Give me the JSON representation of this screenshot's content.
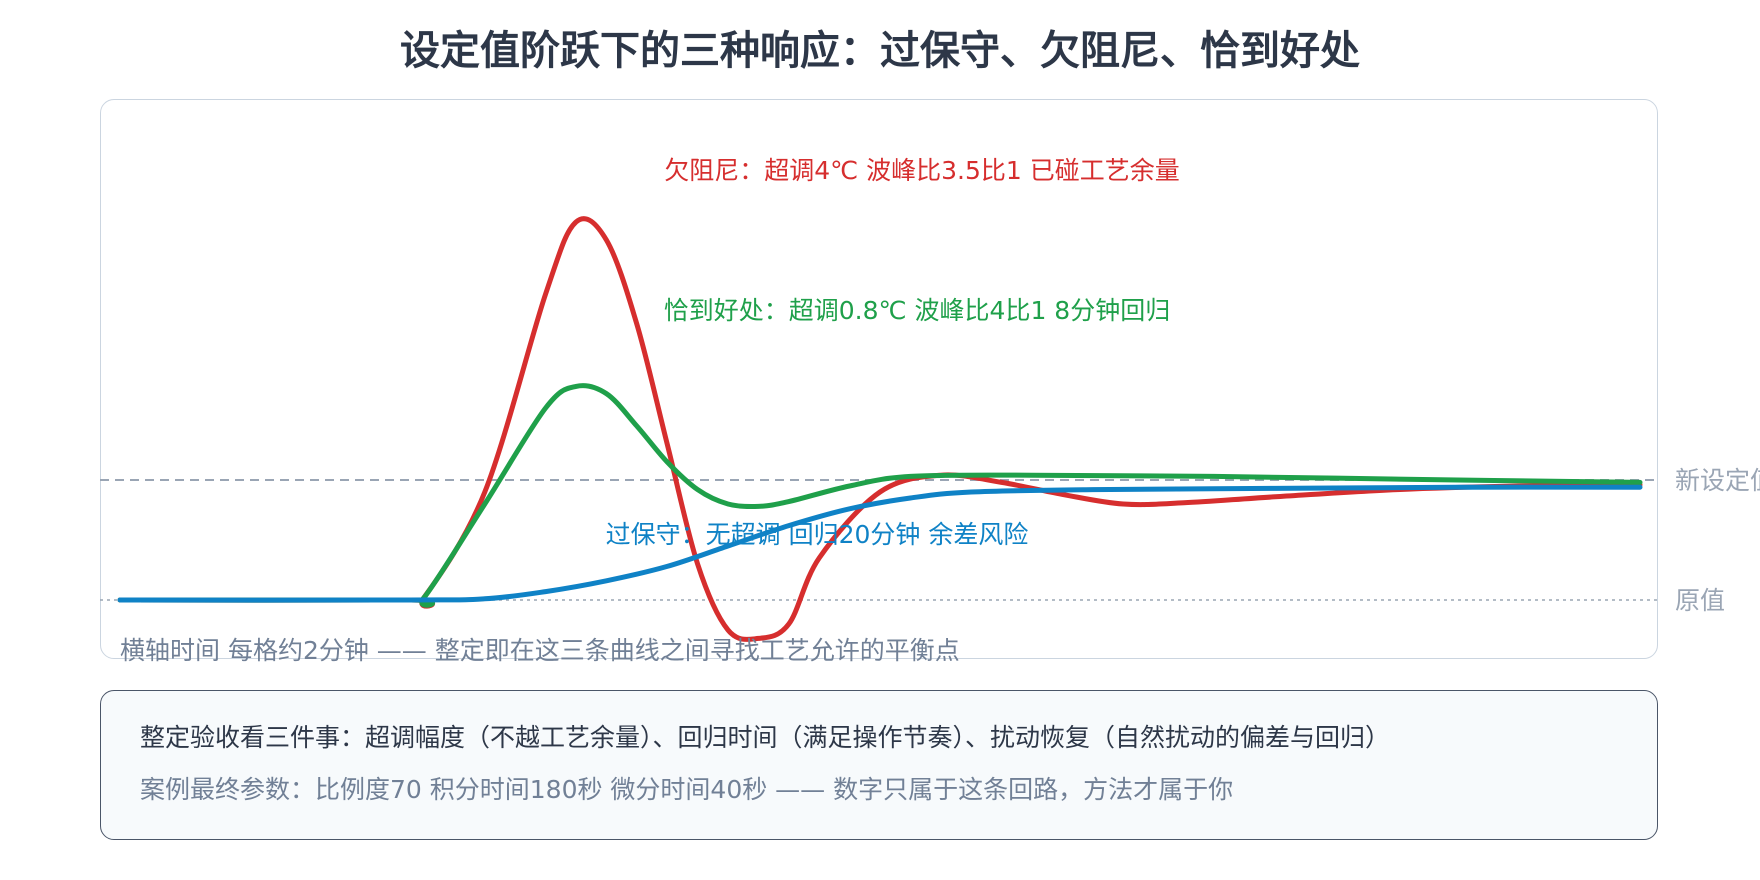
{
  "title": "设定值阶跃下的三种响应：过保守、欠阻尼、恰到好处",
  "chart_data": {
    "type": "line",
    "reference_lines": [
      {
        "label": "新设定值",
        "value": 1.0,
        "color": "#9aa5b4",
        "style": "dashed"
      },
      {
        "label": "原值",
        "value": 0.0,
        "color": "#9aa5b4",
        "style": "dotted"
      }
    ],
    "series": [
      {
        "key": "underdamped",
        "color": "#d62e2e",
        "label": "欠阻尼：超调4℃ 波峰比3.5比1 已碰工艺余量",
        "points": [
          [
            0,
            0
          ],
          [
            9.5,
            0
          ],
          [
            10,
            0.02
          ],
          [
            12,
            0.9
          ],
          [
            14,
            2.55
          ],
          [
            15,
            3.15
          ],
          [
            16,
            3.0
          ],
          [
            17,
            2.3
          ],
          [
            18,
            1.3
          ],
          [
            19,
            0.3
          ],
          [
            20,
            -0.25
          ],
          [
            21,
            -0.32
          ],
          [
            22,
            -0.2
          ],
          [
            23,
            0.35
          ],
          [
            25,
            0.9
          ],
          [
            27,
            1.04
          ],
          [
            29,
            0.98
          ],
          [
            31,
            0.88
          ],
          [
            33,
            0.8
          ],
          [
            35,
            0.81
          ],
          [
            38,
            0.86
          ],
          [
            42,
            0.92
          ],
          [
            46,
            0.95
          ],
          [
            50,
            0.96
          ]
        ]
      },
      {
        "key": "optimal",
        "color": "#1fa04a",
        "label": "恰到好处：超调0.8℃ 波峰比4比1 8分钟回归",
        "points": [
          [
            0,
            0
          ],
          [
            9.5,
            0
          ],
          [
            10,
            0.02
          ],
          [
            12,
            0.8
          ],
          [
            14,
            1.6
          ],
          [
            15,
            1.78
          ],
          [
            16,
            1.72
          ],
          [
            17,
            1.45
          ],
          [
            18,
            1.15
          ],
          [
            19,
            0.92
          ],
          [
            20,
            0.8
          ],
          [
            21,
            0.78
          ],
          [
            22,
            0.82
          ],
          [
            24,
            0.95
          ],
          [
            26,
            1.03
          ],
          [
            30,
            1.04
          ],
          [
            36,
            1.03
          ],
          [
            44,
            1.0
          ],
          [
            50,
            0.98
          ]
        ]
      },
      {
        "key": "conservative",
        "color": "#0f82c6",
        "label": "过保守：无超调 回归20分钟 余差风险",
        "points": [
          [
            0,
            0
          ],
          [
            9.5,
            0
          ],
          [
            12,
            0.01
          ],
          [
            14,
            0.07
          ],
          [
            16,
            0.16
          ],
          [
            18,
            0.28
          ],
          [
            20,
            0.45
          ],
          [
            22,
            0.62
          ],
          [
            24,
            0.76
          ],
          [
            26,
            0.85
          ],
          [
            28,
            0.9
          ],
          [
            32,
            0.92
          ],
          [
            38,
            0.93
          ],
          [
            44,
            0.94
          ],
          [
            50,
            0.94
          ]
        ]
      }
    ],
    "annotations": [
      {
        "series": "underdamped",
        "text": "欠阻尼：超调4℃ 波峰比3.5比1 已碰工艺余量",
        "color": "#d62e2e"
      },
      {
        "series": "optimal",
        "text": "恰到好处：超调0.8℃ 波峰比4比1 8分钟回归",
        "color": "#1fa04a"
      },
      {
        "series": "conservative",
        "text": "过保守：无超调 回归20分钟 余差风险",
        "color": "#0f82c6"
      }
    ],
    "x_caption": "横轴时间 每格约2分钟 —— 整定即在这三条曲线之间寻找工艺允许的平衡点",
    "xlim": [
      0,
      50
    ],
    "ylim": [
      -0.6,
      4.0
    ],
    "grid": false,
    "legend": "none"
  },
  "notes": {
    "line1": "整定验收看三件事：超调幅度（不越工艺余量）、回归时间（满足操作节奏）、扰动恢复（自然扰动的偏差与回归）",
    "line2": "案例最终参数：比例度70 积分时间180秒 微分时间40秒 —— 数字只属于这条回路，方法才属于你"
  }
}
